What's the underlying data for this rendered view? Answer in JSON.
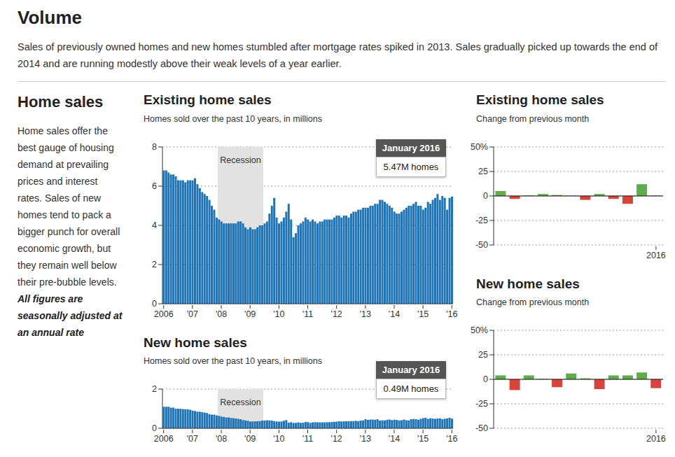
{
  "title": "Volume",
  "subtitle": "Sales of previously owned homes and new homes stumbled after mortgage rates spiked in 2013. Sales gradually picked up towards the end of 2014 and are running modestly above their weak levels of a year earlier.",
  "sidebar": {
    "title": "Home sales",
    "text": "Home sales offer the best gauge of housing demand at prevailing prices and interest rates. Sales of new homes tend to pack a bigger punch for overall economic growth, but they remain well below their pre-bubble levels.",
    "note": "All figures are seasonally adjusted at an annual rate"
  },
  "chart_data": [
    {
      "type": "bar",
      "title": "Existing home sales",
      "subtitle": "Homes sold over the past 10 years, in millions",
      "categories": [
        "2006",
        null,
        null,
        null,
        null,
        null,
        null,
        null,
        null,
        null,
        null,
        null,
        "'07",
        null,
        null,
        null,
        null,
        null,
        null,
        null,
        null,
        null,
        null,
        null,
        "'08",
        null,
        null,
        null,
        null,
        null,
        null,
        null,
        null,
        null,
        null,
        null,
        "'09",
        null,
        null,
        null,
        null,
        null,
        null,
        null,
        null,
        null,
        null,
        null,
        "'10",
        null,
        null,
        null,
        null,
        null,
        null,
        null,
        null,
        null,
        null,
        null,
        "'11",
        null,
        null,
        null,
        null,
        null,
        null,
        null,
        null,
        null,
        null,
        null,
        "'12",
        null,
        null,
        null,
        null,
        null,
        null,
        null,
        null,
        null,
        null,
        null,
        "'13",
        null,
        null,
        null,
        null,
        null,
        null,
        null,
        null,
        null,
        null,
        null,
        "'14",
        null,
        null,
        null,
        null,
        null,
        null,
        null,
        null,
        null,
        null,
        null,
        "'15",
        null,
        null,
        null,
        null,
        null,
        null,
        null,
        null,
        null,
        null,
        null,
        "'16"
      ],
      "values": [
        6.8,
        6.8,
        6.7,
        6.6,
        6.6,
        6.5,
        6.3,
        6.3,
        6.3,
        6.2,
        6.3,
        6.3,
        6.3,
        6.4,
        6.1,
        5.9,
        5.7,
        5.6,
        5.5,
        5.3,
        5.0,
        4.8,
        4.4,
        4.3,
        4.2,
        4.1,
        4.1,
        4.1,
        4.1,
        4.1,
        4.1,
        4.2,
        4.2,
        4.1,
        3.9,
        3.8,
        3.9,
        3.8,
        3.8,
        3.9,
        4.0,
        4.0,
        4.1,
        4.2,
        4.6,
        5.0,
        5.4,
        4.4,
        4.1,
        4.2,
        4.4,
        4.7,
        5.1,
        4.3,
        3.4,
        3.6,
        4.0,
        4.1,
        4.2,
        4.4,
        4.3,
        4.2,
        4.3,
        4.2,
        4.1,
        4.2,
        4.2,
        4.3,
        4.3,
        4.3,
        4.3,
        4.4,
        4.5,
        4.5,
        4.4,
        4.5,
        4.5,
        4.4,
        4.6,
        4.7,
        4.7,
        4.8,
        4.8,
        4.9,
        4.9,
        4.9,
        5.0,
        5.0,
        5.1,
        5.1,
        5.3,
        5.3,
        5.2,
        5.1,
        5.0,
        4.9,
        4.7,
        4.6,
        4.6,
        4.7,
        4.8,
        4.9,
        5.0,
        5.0,
        5.1,
        5.2,
        5.0,
        5.0,
        4.8,
        4.9,
        5.2,
        5.1,
        5.3,
        5.4,
        5.6,
        5.3,
        5.5,
        5.4,
        4.8,
        5.4,
        5.47
      ],
      "color": "#1f74b4",
      "ylim": [
        0,
        8
      ],
      "yticks": [
        0,
        2,
        4,
        6,
        8
      ],
      "grid": true,
      "annotations": [
        {
          "text": "Recession",
          "x_start": 23,
          "x_end": 41
        }
      ],
      "callout": {
        "title": "January 2016",
        "text": "5.47M homes"
      }
    },
    {
      "type": "bar",
      "title": "Existing home sales",
      "subtitle": "Change from previous month",
      "categories": [
        null,
        null,
        null,
        null,
        null,
        null,
        null,
        null,
        null,
        null,
        null,
        "2016"
      ],
      "values": [
        5,
        -3,
        0.5,
        2,
        1,
        0.3,
        -4,
        2,
        -3,
        -8,
        12,
        0.4
      ],
      "colors": [
        "#5dae4b",
        "#d8433a",
        "#5dae4b",
        "#5dae4b",
        "#5dae4b",
        "#5dae4b",
        "#d8433a",
        "#5dae4b",
        "#d8433a",
        "#d8433a",
        "#5dae4b",
        "#5dae4b"
      ],
      "ylim": [
        -50,
        50
      ],
      "yticks": [
        -50,
        -25,
        0,
        25,
        {
          "value": 50,
          "label": "50%"
        }
      ],
      "grid": true
    },
    {
      "type": "bar",
      "title": "New home sales",
      "subtitle": "Homes sold over the past 10 years, in millions",
      "categories": [
        "2006",
        null,
        null,
        null,
        null,
        null,
        null,
        null,
        null,
        null,
        null,
        null,
        "'07",
        null,
        null,
        null,
        null,
        null,
        null,
        null,
        null,
        null,
        null,
        null,
        "'08",
        null,
        null,
        null,
        null,
        null,
        null,
        null,
        null,
        null,
        null,
        null,
        "'09",
        null,
        null,
        null,
        null,
        null,
        null,
        null,
        null,
        null,
        null,
        null,
        "'10",
        null,
        null,
        null,
        null,
        null,
        null,
        null,
        null,
        null,
        null,
        null,
        "'11",
        null,
        null,
        null,
        null,
        null,
        null,
        null,
        null,
        null,
        null,
        null,
        "'12",
        null,
        null,
        null,
        null,
        null,
        null,
        null,
        null,
        null,
        null,
        null,
        "'13",
        null,
        null,
        null,
        null,
        null,
        null,
        null,
        null,
        null,
        null,
        null,
        "'14",
        null,
        null,
        null,
        null,
        null,
        null,
        null,
        null,
        null,
        null,
        null,
        "'15",
        null,
        null,
        null,
        null,
        null,
        null,
        null,
        null,
        null,
        null,
        null,
        "'16"
      ],
      "values": [
        1.1,
        1.1,
        1.1,
        1.05,
        1.05,
        1.0,
        1.0,
        1.0,
        0.98,
        0.97,
        0.97,
        0.95,
        0.9,
        0.88,
        0.85,
        0.85,
        0.82,
        0.8,
        0.78,
        0.72,
        0.7,
        0.7,
        0.66,
        0.63,
        0.6,
        0.58,
        0.55,
        0.55,
        0.53,
        0.52,
        0.5,
        0.48,
        0.46,
        0.42,
        0.4,
        0.38,
        0.35,
        0.35,
        0.36,
        0.36,
        0.37,
        0.39,
        0.4,
        0.41,
        0.4,
        0.39,
        0.37,
        0.35,
        0.34,
        0.35,
        0.38,
        0.42,
        0.29,
        0.31,
        0.28,
        0.28,
        0.3,
        0.28,
        0.29,
        0.32,
        0.31,
        0.28,
        0.3,
        0.31,
        0.3,
        0.3,
        0.3,
        0.3,
        0.31,
        0.31,
        0.32,
        0.33,
        0.34,
        0.36,
        0.35,
        0.36,
        0.36,
        0.37,
        0.37,
        0.37,
        0.38,
        0.37,
        0.39,
        0.4,
        0.46,
        0.43,
        0.45,
        0.45,
        0.44,
        0.46,
        0.39,
        0.41,
        0.4,
        0.44,
        0.45,
        0.42,
        0.44,
        0.43,
        0.4,
        0.41,
        0.45,
        0.41,
        0.4,
        0.46,
        0.47,
        0.46,
        0.44,
        0.48,
        0.52,
        0.54,
        0.48,
        0.51,
        0.5,
        0.48,
        0.5,
        0.51,
        0.46,
        0.49,
        0.5,
        0.54,
        0.49
      ],
      "color": "#1f74b4",
      "ylim": [
        0,
        2
      ],
      "yticks": [
        0,
        2
      ],
      "grid": true,
      "annotations": [
        {
          "text": "Recession",
          "x_start": 23,
          "x_end": 41
        }
      ],
      "callout": {
        "title": "January 2016",
        "text": "0.49M homes"
      }
    },
    {
      "type": "bar",
      "title": "New home sales",
      "subtitle": "Change from previous month",
      "categories": [
        null,
        null,
        null,
        null,
        null,
        null,
        null,
        null,
        null,
        null,
        null,
        "2016"
      ],
      "values": [
        4,
        -11,
        4,
        0.5,
        -8,
        6,
        1,
        -10,
        4,
        4,
        7,
        -9
      ],
      "colors": [
        "#5dae4b",
        "#d8433a",
        "#5dae4b",
        "#5dae4b",
        "#d8433a",
        "#5dae4b",
        "#5dae4b",
        "#d8433a",
        "#5dae4b",
        "#5dae4b",
        "#5dae4b",
        "#d8433a"
      ],
      "ylim": [
        -50,
        50
      ],
      "yticks": [
        -50,
        -25,
        0,
        25,
        {
          "value": 50,
          "label": "50%"
        }
      ],
      "grid": true
    }
  ]
}
